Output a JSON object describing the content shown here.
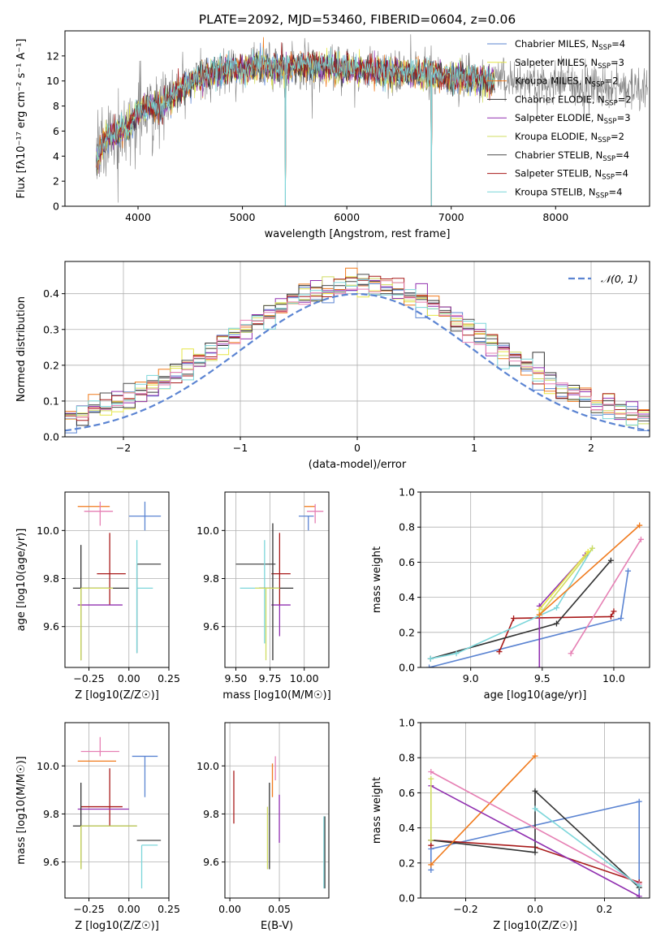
{
  "figure_title": "PLATE=2092, MJD=53460, FIBERID=0604, z=0.06",
  "colors": {
    "series": [
      "#5b84d2",
      "#e6e646",
      "#f07a1c",
      "#333333",
      "#9130b0",
      "#d0dc60",
      "#4a4a4a",
      "#a81a1a",
      "#7cd6da",
      "#e680b4"
    ]
  },
  "chart_data": [
    {
      "id": "spectrum",
      "type": "line",
      "title": "PLATE=2092, MJD=53460, FIBERID=0604, z=0.06",
      "xlabel": "wavelength [Angstrom, rest frame]",
      "ylabel": "Flux [fλ10⁻¹⁷ erg cm⁻² s⁻¹ A⁻¹]",
      "xlim": [
        3300,
        8900
      ],
      "ylim": [
        0,
        14
      ],
      "xticks": [
        "4000",
        "5000",
        "6000",
        "7000",
        "8000"
      ],
      "yticks": [
        "0",
        "2",
        "4",
        "6",
        "8",
        "10",
        "12"
      ],
      "grid": false,
      "legend": "right",
      "data_color": "#808080",
      "profile": {
        "x": [
          3600,
          3700,
          3800,
          3900,
          4000,
          4100,
          4200,
          4300,
          4400,
          4500,
          4600,
          4700,
          4800,
          4900,
          5000,
          5200,
          5400,
          5600,
          5800,
          6000,
          6200,
          6400,
          6600,
          6800,
          7000,
          7200,
          7400
        ],
        "y": [
          3.5,
          5.5,
          5.8,
          6.2,
          7.5,
          8.0,
          7.8,
          8.5,
          9.2,
          9.8,
          10.3,
          10.6,
          10.8,
          11.0,
          10.9,
          11.2,
          11.0,
          11.3,
          11.1,
          11.0,
          10.8,
          10.7,
          10.6,
          10.5,
          10.3,
          10.2,
          10.0
        ]
      },
      "model_range": [
        3600,
        7420
      ],
      "model_dips": [
        5410,
        6810
      ],
      "legend_entries": [
        {
          "label": "Chabrier MILES, N",
          "sub": "SSP",
          "suffix": "=4",
          "color": "#5b84d2"
        },
        {
          "label": "Salpeter MILES, N",
          "sub": "SSP",
          "suffix": "=3",
          "color": "#e6e646"
        },
        {
          "label": "Kroupa MILES, N",
          "sub": "SSP",
          "suffix": "=2",
          "color": "#f07a1c"
        },
        {
          "label": "Chabrier ELODIE, N",
          "sub": "SSP",
          "suffix": "=2",
          "color": "#333333"
        },
        {
          "label": "Salpeter ELODIE, N",
          "sub": "SSP",
          "suffix": "=3",
          "color": "#9130b0"
        },
        {
          "label": "Kroupa ELODIE, N",
          "sub": "SSP",
          "suffix": "=2",
          "color": "#d0dc60"
        },
        {
          "label": "Chabrier STELIB, N",
          "sub": "SSP",
          "suffix": "=4",
          "color": "#4a4a4a"
        },
        {
          "label": "Salpeter STELIB, N",
          "sub": "SSP",
          "suffix": "=4",
          "color": "#a81a1a"
        },
        {
          "label": "Kroupa STELIB, N",
          "sub": "SSP",
          "suffix": "=4",
          "color": "#7cd6da"
        }
      ]
    },
    {
      "id": "residuals",
      "type": "histogram",
      "xlabel": "(data-model)/error",
      "ylabel": "Normed distribution",
      "xlim": [
        -2.5,
        2.5
      ],
      "ylim": [
        0,
        0.49
      ],
      "xticks": [
        "−2",
        "−1",
        "0",
        "1",
        "2"
      ],
      "yticks": [
        "0.0",
        "0.1",
        "0.2",
        "0.3",
        "0.4"
      ],
      "grid": true,
      "legend": "top-right",
      "reference_curve": "N(0,1)",
      "legend_label": "𝒩(0, 1)",
      "reference_color": "#5b84d2",
      "bin_width": 0.1
    },
    {
      "id": "age_vs_Z",
      "type": "errorbar",
      "xlabel": "Z [log10(Z/Z☉)]",
      "ylabel": "age [log10(age/yr)]",
      "xlim": [
        -0.4,
        0.25
      ],
      "ylim": [
        9.43,
        10.16
      ],
      "xticks": [
        "−0.25",
        "0.00",
        "0.25"
      ],
      "yticks": [
        "9.6",
        "9.8",
        "10.0"
      ],
      "grid": true,
      "points": [
        {
          "x": -0.22,
          "y": 10.1,
          "dx": [
            0.1,
            0.1
          ],
          "dy": [
            0.0,
            0.0
          ],
          "color": "#f07a1c"
        },
        {
          "x": -0.18,
          "y": 10.08,
          "dx": [
            0.1,
            0.08
          ],
          "dy": [
            0.06,
            0.04
          ],
          "color": "#e680b4"
        },
        {
          "x": 0.1,
          "y": 10.06,
          "dx": [
            0.1,
            0.1
          ],
          "dy": [
            0.06,
            0.06
          ],
          "color": "#5b84d2"
        },
        {
          "x": -0.12,
          "y": 9.82,
          "dx": [
            0.08,
            0.1
          ],
          "dy": [
            0.13,
            0.17
          ],
          "color": "#a81a1a"
        },
        {
          "x": -0.18,
          "y": 9.69,
          "dx": [
            0.14,
            0.14
          ],
          "dy": [
            0.0,
            0.0
          ],
          "color": "#9130b0"
        },
        {
          "x": 0.05,
          "y": 9.86,
          "dx": [
            0.0,
            0.15
          ],
          "dy": [
            0.37,
            0.0
          ],
          "color": "#4a4a4a"
        },
        {
          "x": 0.05,
          "y": 9.76,
          "dx": [
            0.0,
            0.1
          ],
          "dy": [
            0.27,
            0.2
          ],
          "color": "#7cd6da"
        },
        {
          "x": -0.3,
          "y": 9.76,
          "dx": [
            0.05,
            0.3
          ],
          "dy": [
            0.3,
            0.18
          ],
          "color": "#333333"
        },
        {
          "x": -0.3,
          "y": 9.76,
          "dx": [
            0.0,
            0.2
          ],
          "dy": [
            0.3,
            0.0
          ],
          "color": "#d0dc60"
        }
      ]
    },
    {
      "id": "age_vs_mass",
      "type": "errorbar",
      "xlabel": "mass [log10(M/M☉)]",
      "ylabel": "",
      "xlim": [
        9.42,
        10.18
      ],
      "ylim": [
        9.43,
        10.16
      ],
      "xticks": [
        "9.50",
        "9.75",
        "10.00"
      ],
      "yticks": [
        "9.6",
        "9.8",
        "10.0"
      ],
      "grid": true,
      "points": [
        {
          "x": 10.04,
          "y": 10.1,
          "dx": [
            0.04,
            0.04
          ],
          "dy": [
            0.0,
            0.0
          ],
          "color": "#f07a1c"
        },
        {
          "x": 10.08,
          "y": 10.08,
          "dx": [
            0.06,
            0.06
          ],
          "dy": [
            0.05,
            0.03
          ],
          "color": "#e680b4"
        },
        {
          "x": 10.03,
          "y": 10.06,
          "dx": [
            0.07,
            0.04
          ],
          "dy": [
            0.06,
            0.0
          ],
          "color": "#5b84d2"
        },
        {
          "x": 9.82,
          "y": 9.82,
          "dx": [
            0.06,
            0.08
          ],
          "dy": [
            0.13,
            0.17
          ],
          "color": "#a81a1a"
        },
        {
          "x": 9.82,
          "y": 9.69,
          "dx": [
            0.06,
            0.08
          ],
          "dy": [
            0.13,
            0.0
          ],
          "color": "#9130b0"
        },
        {
          "x": 9.67,
          "y": 9.86,
          "dx": [
            0.17,
            0.12
          ],
          "dy": [
            0.0,
            0.0
          ],
          "color": "#4a4a4a"
        },
        {
          "x": 9.71,
          "y": 9.76,
          "dx": [
            0.18,
            0.0
          ],
          "dy": [
            0.23,
            0.2
          ],
          "color": "#7cd6da"
        },
        {
          "x": 9.77,
          "y": 9.76,
          "dx": [
            0.1,
            0.15
          ],
          "dy": [
            0.3,
            0.27
          ],
          "color": "#333333"
        },
        {
          "x": 9.72,
          "y": 9.76,
          "dx": [
            0.08,
            0.1
          ],
          "dy": [
            0.3,
            0.0
          ],
          "color": "#d0dc60"
        }
      ]
    },
    {
      "id": "weight_vs_age",
      "type": "line",
      "xlabel": "age [log10(age/yr)]",
      "ylabel": "mass weight",
      "xlim": [
        8.65,
        10.25
      ],
      "ylim": [
        0,
        1.0
      ],
      "xticks": [
        "9.0",
        "9.5",
        "10.0"
      ],
      "yticks": [
        "0.0",
        "0.2",
        "0.4",
        "0.6",
        "0.8",
        "1.0"
      ],
      "grid": true,
      "series": [
        {
          "color": "#5b84d2",
          "points": [
            [
              8.71,
              0.0
            ],
            [
              10.05,
              0.28
            ],
            [
              10.1,
              0.55
            ]
          ]
        },
        {
          "color": "#a81a1a",
          "points": [
            [
              9.2,
              0.09
            ],
            [
              9.3,
              0.28
            ],
            [
              9.98,
              0.29
            ],
            [
              10.0,
              0.32
            ]
          ]
        },
        {
          "color": "#333333",
          "points": [
            [
              8.72,
              0.05
            ],
            [
              9.6,
              0.25
            ],
            [
              9.98,
              0.61
            ]
          ]
        },
        {
          "color": "#7cd6da",
          "points": [
            [
              8.72,
              0.05
            ],
            [
              8.9,
              0.08
            ],
            [
              9.6,
              0.34
            ],
            [
              9.85,
              0.68
            ]
          ]
        },
        {
          "color": "#9130b0",
          "points": [
            [
              9.48,
              0.0
            ],
            [
              9.48,
              0.35
            ],
            [
              9.8,
              0.64
            ]
          ]
        },
        {
          "color": "#d0dc60",
          "points": [
            [
              9.48,
              0.3
            ],
            [
              9.85,
              0.68
            ]
          ]
        },
        {
          "color": "#f07a1c",
          "points": [
            [
              9.48,
              0.3
            ],
            [
              10.18,
              0.81
            ]
          ]
        },
        {
          "color": "#e680b4",
          "points": [
            [
              9.7,
              0.08
            ],
            [
              10.19,
              0.73
            ]
          ]
        },
        {
          "color": "#e6e646",
          "points": [
            [
              9.48,
              0.33
            ],
            [
              9.82,
              0.66
            ]
          ]
        }
      ]
    },
    {
      "id": "mass_vs_Z",
      "type": "errorbar",
      "xlabel": "Z [log10(Z/Z☉)]",
      "ylabel": "mass [log10(M/M☉)]",
      "xlim": [
        -0.4,
        0.25
      ],
      "ylim": [
        9.45,
        10.18
      ],
      "xticks": [
        "−0.25",
        "0.00",
        "0.25"
      ],
      "yticks": [
        "9.6",
        "9.8",
        "10.0"
      ],
      "grid": true,
      "points": [
        {
          "x": -0.18,
          "y": 10.06,
          "dx": [
            0.12,
            0.12
          ],
          "dy": [
            0.02,
            0.06
          ],
          "color": "#e680b4"
        },
        {
          "x": -0.2,
          "y": 10.02,
          "dx": [
            0.12,
            0.12
          ],
          "dy": [
            0.0,
            0.0
          ],
          "color": "#f07a1c"
        },
        {
          "x": 0.1,
          "y": 10.04,
          "dx": [
            0.08,
            0.08
          ],
          "dy": [
            0.17,
            0.0
          ],
          "color": "#5b84d2"
        },
        {
          "x": -0.12,
          "y": 9.83,
          "dx": [
            0.18,
            0.08
          ],
          "dy": [
            0.08,
            0.16
          ],
          "color": "#a81a1a"
        },
        {
          "x": -0.2,
          "y": 9.82,
          "dx": [
            0.12,
            0.2
          ],
          "dy": [
            0.0,
            0.0
          ],
          "color": "#9130b0"
        },
        {
          "x": 0.05,
          "y": 9.69,
          "dx": [
            0.0,
            0.15
          ],
          "dy": [
            0.0,
            0.0
          ],
          "color": "#4a4a4a"
        },
        {
          "x": 0.08,
          "y": 9.67,
          "dx": [
            0.0,
            0.1
          ],
          "dy": [
            0.18,
            0.0
          ],
          "color": "#7cd6da"
        },
        {
          "x": -0.3,
          "y": 9.75,
          "dx": [
            0.05,
            0.35
          ],
          "dy": [
            0.18,
            0.18
          ],
          "color": "#333333"
        },
        {
          "x": -0.3,
          "y": 9.75,
          "dx": [
            0.0,
            0.35
          ],
          "dy": [
            0.18,
            0.0
          ],
          "color": "#d0dc60"
        }
      ]
    },
    {
      "id": "mass_vs_EBV",
      "type": "errorbar",
      "xlabel": "E(B-V)",
      "ylabel": "",
      "xlim": [
        -0.005,
        0.1
      ],
      "ylim": [
        9.45,
        10.18
      ],
      "xticks": [
        "0.00",
        "0.05"
      ],
      "yticks": [
        "9.6",
        "9.8",
        "10.0"
      ],
      "grid": true,
      "points": [
        {
          "x": 0.004,
          "y": 9.87,
          "dy": [
            0.11,
            0.11
          ],
          "color": "#a81a1a"
        },
        {
          "x": 0.038,
          "y": 9.7,
          "dy": [
            0.13,
            0.13
          ],
          "color": "#d0dc60"
        },
        {
          "x": 0.04,
          "y": 9.75,
          "dy": [
            0.18,
            0.18
          ],
          "color": "#333333"
        },
        {
          "x": 0.043,
          "y": 9.94,
          "dy": [
            0.07,
            0.07
          ],
          "color": "#f07a1c"
        },
        {
          "x": 0.046,
          "y": 10.04,
          "dy": [
            0.1,
            0.0
          ],
          "color": "#e680b4"
        },
        {
          "x": 0.048,
          "y": 9.97,
          "dy": [
            0.0,
            0.0
          ],
          "color": "#5b84d2"
        },
        {
          "x": 0.05,
          "y": 9.78,
          "dy": [
            0.1,
            0.1
          ],
          "color": "#9130b0"
        },
        {
          "x": 0.095,
          "y": 9.64,
          "dy": [
            0.15,
            0.15
          ],
          "color": "#7cd6da"
        },
        {
          "x": 0.096,
          "y": 9.64,
          "dy": [
            0.15,
            0.15
          ],
          "color": "#4a4a4a"
        }
      ]
    },
    {
      "id": "weight_vs_Z",
      "type": "line",
      "xlabel": "Z [log10(Z/Z☉)]",
      "ylabel": "mass weight",
      "xlim": [
        -0.33,
        0.33
      ],
      "ylim": [
        0,
        1.0
      ],
      "xticks": [
        "−0.2",
        "0.0",
        "0.2"
      ],
      "yticks": [
        "0.0",
        "0.2",
        "0.4",
        "0.6",
        "0.8",
        "1.0"
      ],
      "grid": true,
      "series": [
        {
          "color": "#5b84d2",
          "points": [
            [
              -0.3,
              0.16
            ],
            [
              -0.3,
              0.28
            ],
            [
              0.3,
              0.55
            ],
            [
              0.3,
              0.0
            ]
          ]
        },
        {
          "color": "#a81a1a",
          "points": [
            [
              -0.3,
              0.3
            ],
            [
              -0.3,
              0.33
            ],
            [
              0.0,
              0.29
            ],
            [
              0.3,
              0.09
            ]
          ]
        },
        {
          "color": "#333333",
          "points": [
            [
              -0.3,
              0.33
            ],
            [
              0.0,
              0.26
            ],
            [
              0.0,
              0.61
            ],
            [
              0.3,
              0.06
            ]
          ]
        },
        {
          "color": "#f07a1c",
          "points": [
            [
              -0.3,
              0.19
            ],
            [
              0.0,
              0.81
            ]
          ]
        },
        {
          "color": "#e680b4",
          "points": [
            [
              -0.3,
              0.72
            ],
            [
              0.3,
              0.08
            ]
          ]
        },
        {
          "color": "#9130b0",
          "points": [
            [
              -0.3,
              0.64
            ],
            [
              0.3,
              0.01
            ]
          ]
        },
        {
          "color": "#7cd6da",
          "points": [
            [
              0.0,
              0.51
            ],
            [
              0.3,
              0.07
            ]
          ]
        },
        {
          "color": "#d0dc60",
          "points": [
            [
              -0.3,
              0.68
            ],
            [
              -0.3,
              0.33
            ]
          ]
        }
      ]
    }
  ]
}
